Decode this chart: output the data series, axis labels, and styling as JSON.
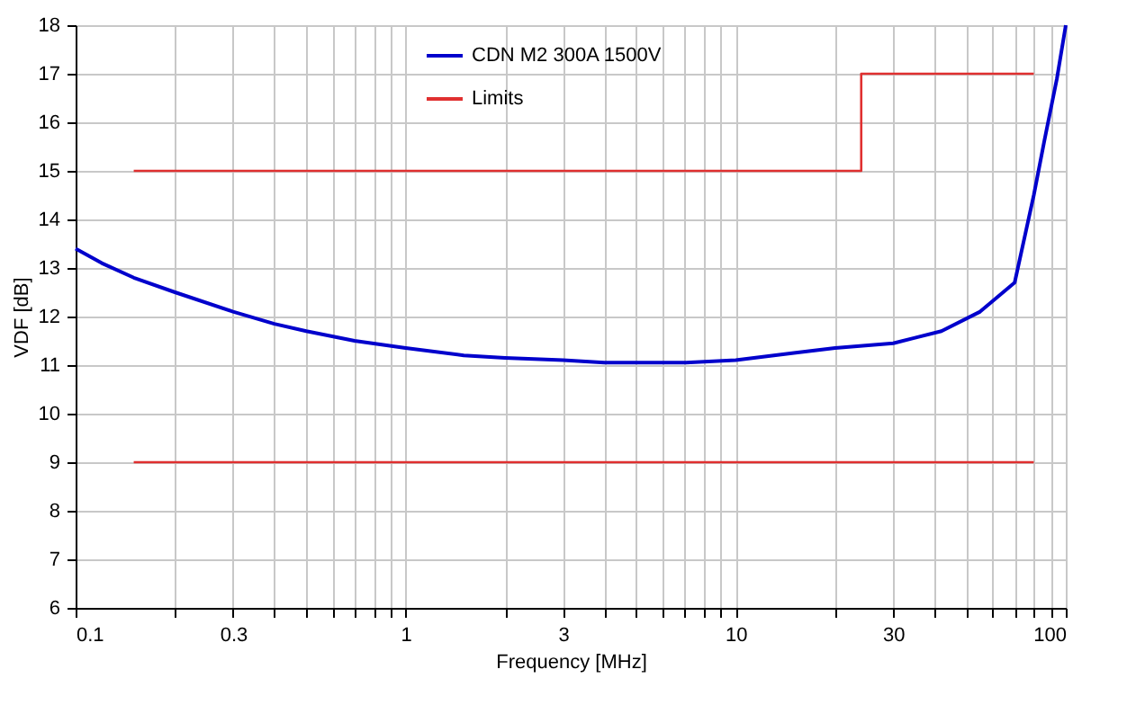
{
  "chart_data": {
    "type": "line",
    "xlabel": "Frequency [MHz]",
    "ylabel": "VDF [dB]",
    "log": "x",
    "xlim": [
      0.1,
      100
    ],
    "ylim": [
      6,
      18
    ],
    "xticks": [
      0.1,
      {
        "value": 0.2,
        "label": null
      },
      0.3,
      {
        "value": 0.4,
        "label": null
      },
      {
        "value": 0.5,
        "label": null
      },
      {
        "value": 0.6,
        "label": null
      },
      {
        "value": 0.7,
        "label": null
      },
      {
        "value": 0.8,
        "label": null
      },
      {
        "value": 0.9,
        "label": null
      },
      1,
      {
        "value": 2,
        "label": null
      },
      3,
      {
        "value": 4,
        "label": null
      },
      {
        "value": 5,
        "label": null
      },
      {
        "value": 6,
        "label": null
      },
      {
        "value": 7,
        "label": null
      },
      {
        "value": 8,
        "label": null
      },
      {
        "value": 9,
        "label": null
      },
      10,
      {
        "value": 20,
        "label": null
      },
      30,
      {
        "value": 40,
        "label": null
      },
      {
        "value": 50,
        "label": null
      },
      {
        "value": 60,
        "label": null
      },
      {
        "value": 70,
        "label": null
      },
      {
        "value": 80,
        "label": null
      },
      {
        "value": 90,
        "label": null
      },
      100
    ],
    "yticks": [
      6,
      7,
      8,
      9,
      10,
      11,
      12,
      13,
      14,
      15,
      16,
      17,
      18
    ],
    "grid": true,
    "legend": "top right",
    "line_style": "solid",
    "marker": "none",
    "series": [
      {
        "name": "CDN M2 300A 1500V",
        "color": "#0000cc",
        "x": [
          0.1,
          0.12,
          0.15,
          0.2,
          0.3,
          0.4,
          0.5,
          0.7,
          1,
          1.5,
          2,
          3,
          4,
          5,
          7,
          10,
          15,
          20,
          30,
          42,
          55,
          62,
          70,
          80,
          86,
          94,
          100
        ],
        "values": [
          13.4,
          13.1,
          12.8,
          12.5,
          12.1,
          11.85,
          11.7,
          11.5,
          11.35,
          11.2,
          11.15,
          11.1,
          11.05,
          11.05,
          11.05,
          11.1,
          11.25,
          11.35,
          11.45,
          11.7,
          12.1,
          12.4,
          12.7,
          14.5,
          15.6,
          16.9,
          18
        ]
      },
      {
        "name": "Limits",
        "color": "#e03030",
        "x": [
          0.15,
          24,
          24,
          80
        ],
        "values": [
          15,
          15,
          17,
          17
        ]
      },
      {
        "color": "#e03030",
        "x": [
          0.15,
          80
        ],
        "values": [
          9,
          9
        ]
      }
    ]
  }
}
